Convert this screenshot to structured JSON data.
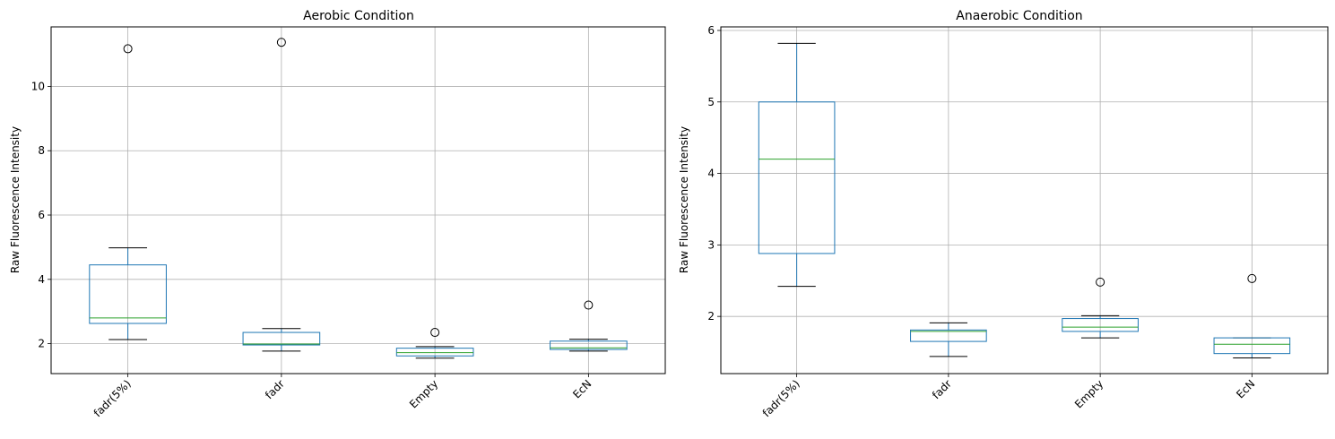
{
  "chart_data": [
    {
      "type": "box",
      "title": "Aerobic Condition",
      "xlabel": "",
      "ylabel": "Raw Fluorescence Intensity",
      "categories": [
        "fadr(5%)",
        "fadr",
        "Empty",
        "EcN"
      ],
      "ylim": [
        1.07,
        11.85
      ],
      "yticks": [
        2,
        4,
        6,
        8,
        10
      ],
      "grid": true,
      "boxes": [
        {
          "whislo": 2.13,
          "q1": 2.63,
          "med": 2.8,
          "q3": 4.45,
          "whishi": 4.98,
          "fliers": [
            11.17
          ]
        },
        {
          "whislo": 1.77,
          "q1": 1.96,
          "med": 1.99,
          "q3": 2.35,
          "whishi": 2.47,
          "fliers": [
            11.37
          ]
        },
        {
          "whislo": 1.55,
          "q1": 1.62,
          "med": 1.72,
          "q3": 1.86,
          "whishi": 1.91,
          "fliers": [
            2.35
          ]
        },
        {
          "whislo": 1.77,
          "q1": 1.82,
          "med": 1.87,
          "q3": 2.08,
          "whishi": 2.14,
          "fliers": [
            3.2
          ]
        }
      ]
    },
    {
      "type": "box",
      "title": "Anaerobic Condition",
      "xlabel": "",
      "ylabel": "Raw Fluorescence Intensity",
      "categories": [
        "fadr(5%)",
        "fadr",
        "Empty",
        "EcN"
      ],
      "ylim": [
        1.2,
        6.05
      ],
      "yticks": [
        2,
        3,
        4,
        5,
        6
      ],
      "grid": true,
      "boxes": [
        {
          "whislo": 2.42,
          "q1": 2.88,
          "med": 4.2,
          "q3": 5.0,
          "whishi": 5.82,
          "fliers": []
        },
        {
          "whislo": 1.44,
          "q1": 1.65,
          "med": 1.79,
          "q3": 1.81,
          "whishi": 1.91,
          "fliers": []
        },
        {
          "whislo": 1.7,
          "q1": 1.79,
          "med": 1.85,
          "q3": 1.97,
          "whishi": 2.01,
          "fliers": [
            2.48
          ]
        },
        {
          "whislo": 1.42,
          "q1": 1.48,
          "med": 1.61,
          "q3": 1.7,
          "whishi": 1.7,
          "fliers": [
            2.53
          ]
        }
      ]
    }
  ],
  "colors": {
    "box": "#1f77b4",
    "median": "#2ca02c",
    "whisker_cap": "#000000",
    "grid": "#b0b0b0",
    "axes": "#000000"
  }
}
